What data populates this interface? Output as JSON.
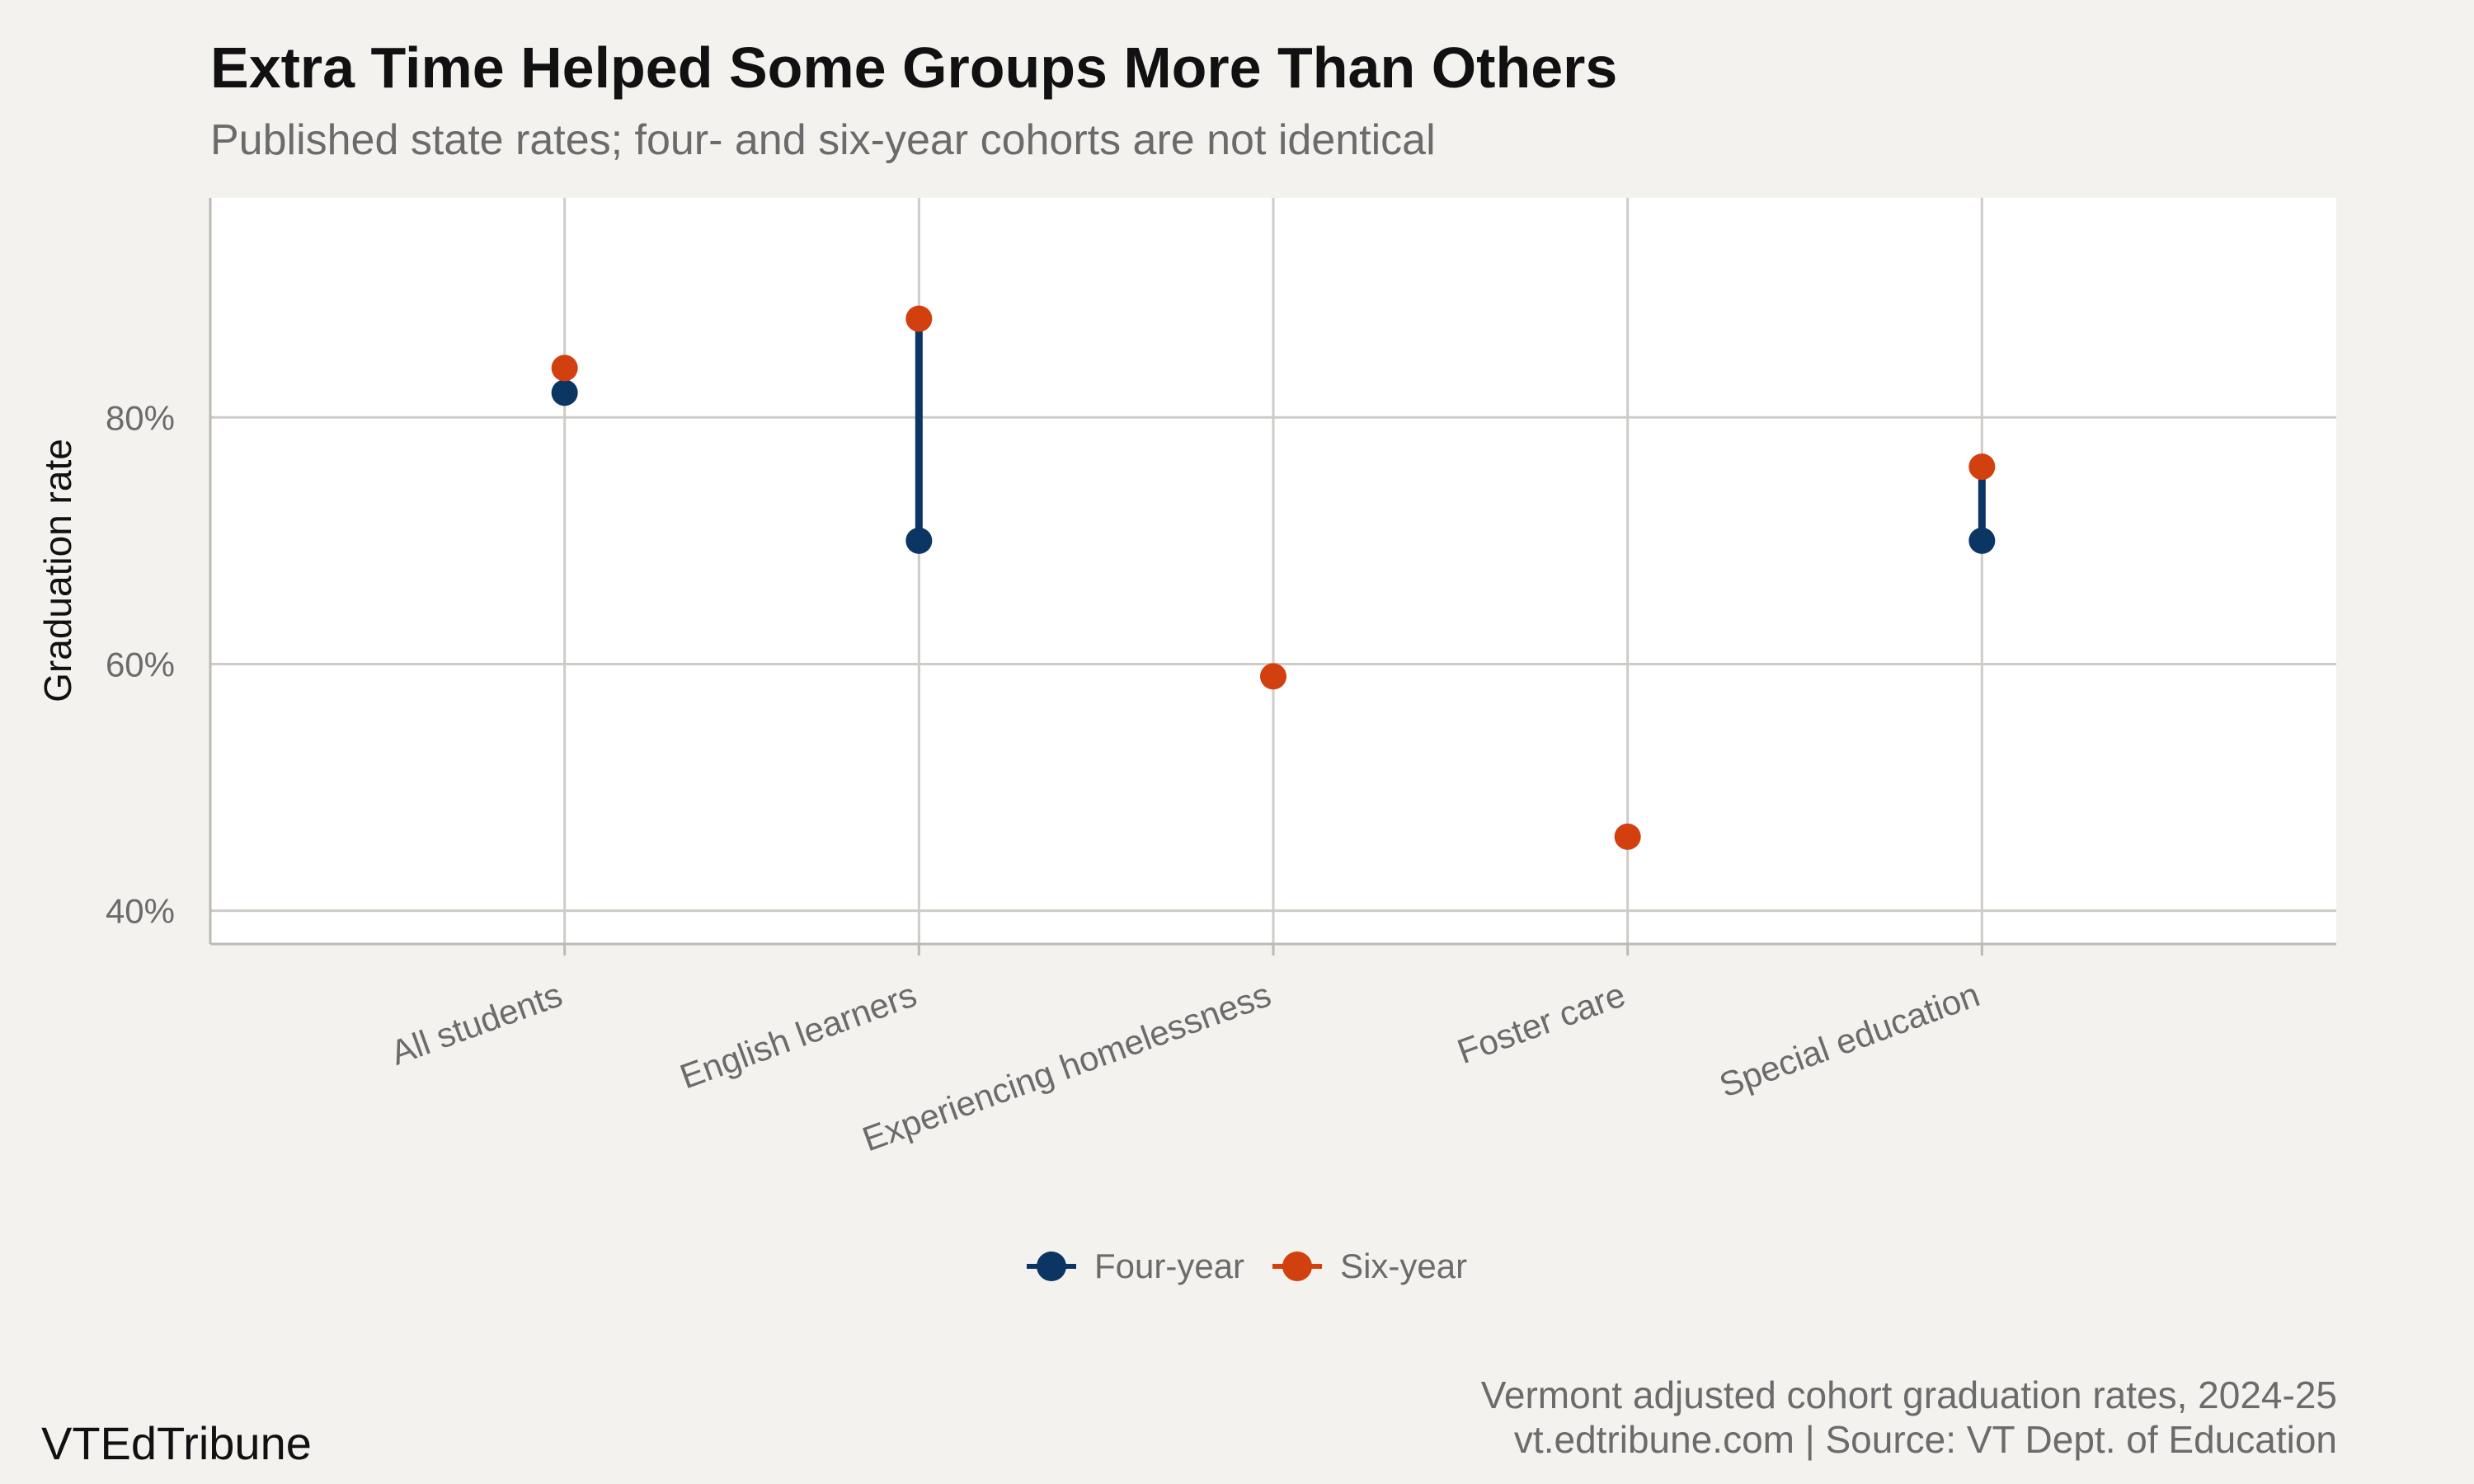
{
  "title": "Extra Time Helped Some Groups More Than Others",
  "subtitle": "Published state rates; four- and six-year cohorts are not identical",
  "brand": "VTEdTribune",
  "caption": {
    "line1": "Vermont adjusted cohort graduation rates, 2024-25",
    "line2": "vt.edtribune.com | Source: VT Dept. of Education"
  },
  "colors": {
    "background": "#f4f2ee",
    "panel": "#ffffff",
    "four_year": "#0b3563",
    "six_year": "#d2400f",
    "grid": "#cfccc8"
  },
  "legend": {
    "four_year": "Four-year",
    "six_year": "Six-year",
    "placement": "bottom-center"
  },
  "chart_data": {
    "type": "dumbbell",
    "title": "Extra Time Helped Some Groups More Than Others",
    "subtitle": "Published state rates; four- and six-year cohorts are not identical",
    "xlabel": "",
    "ylabel": "Graduation rate",
    "categories": [
      "All students",
      "English learners",
      "Experiencing homelessness",
      "Foster care",
      "Special education"
    ],
    "series": [
      {
        "name": "Four-year",
        "values": [
          82,
          70,
          null,
          null,
          70
        ]
      },
      {
        "name": "Six-year",
        "values": [
          84,
          88,
          59,
          46,
          76
        ]
      }
    ],
    "yticks": [
      40,
      60,
      80
    ],
    "ytick_labels": [
      "40%",
      "60%",
      "80%"
    ],
    "ylim": [
      37.3,
      97.8
    ],
    "grid": true,
    "legend_position": "bottom"
  }
}
